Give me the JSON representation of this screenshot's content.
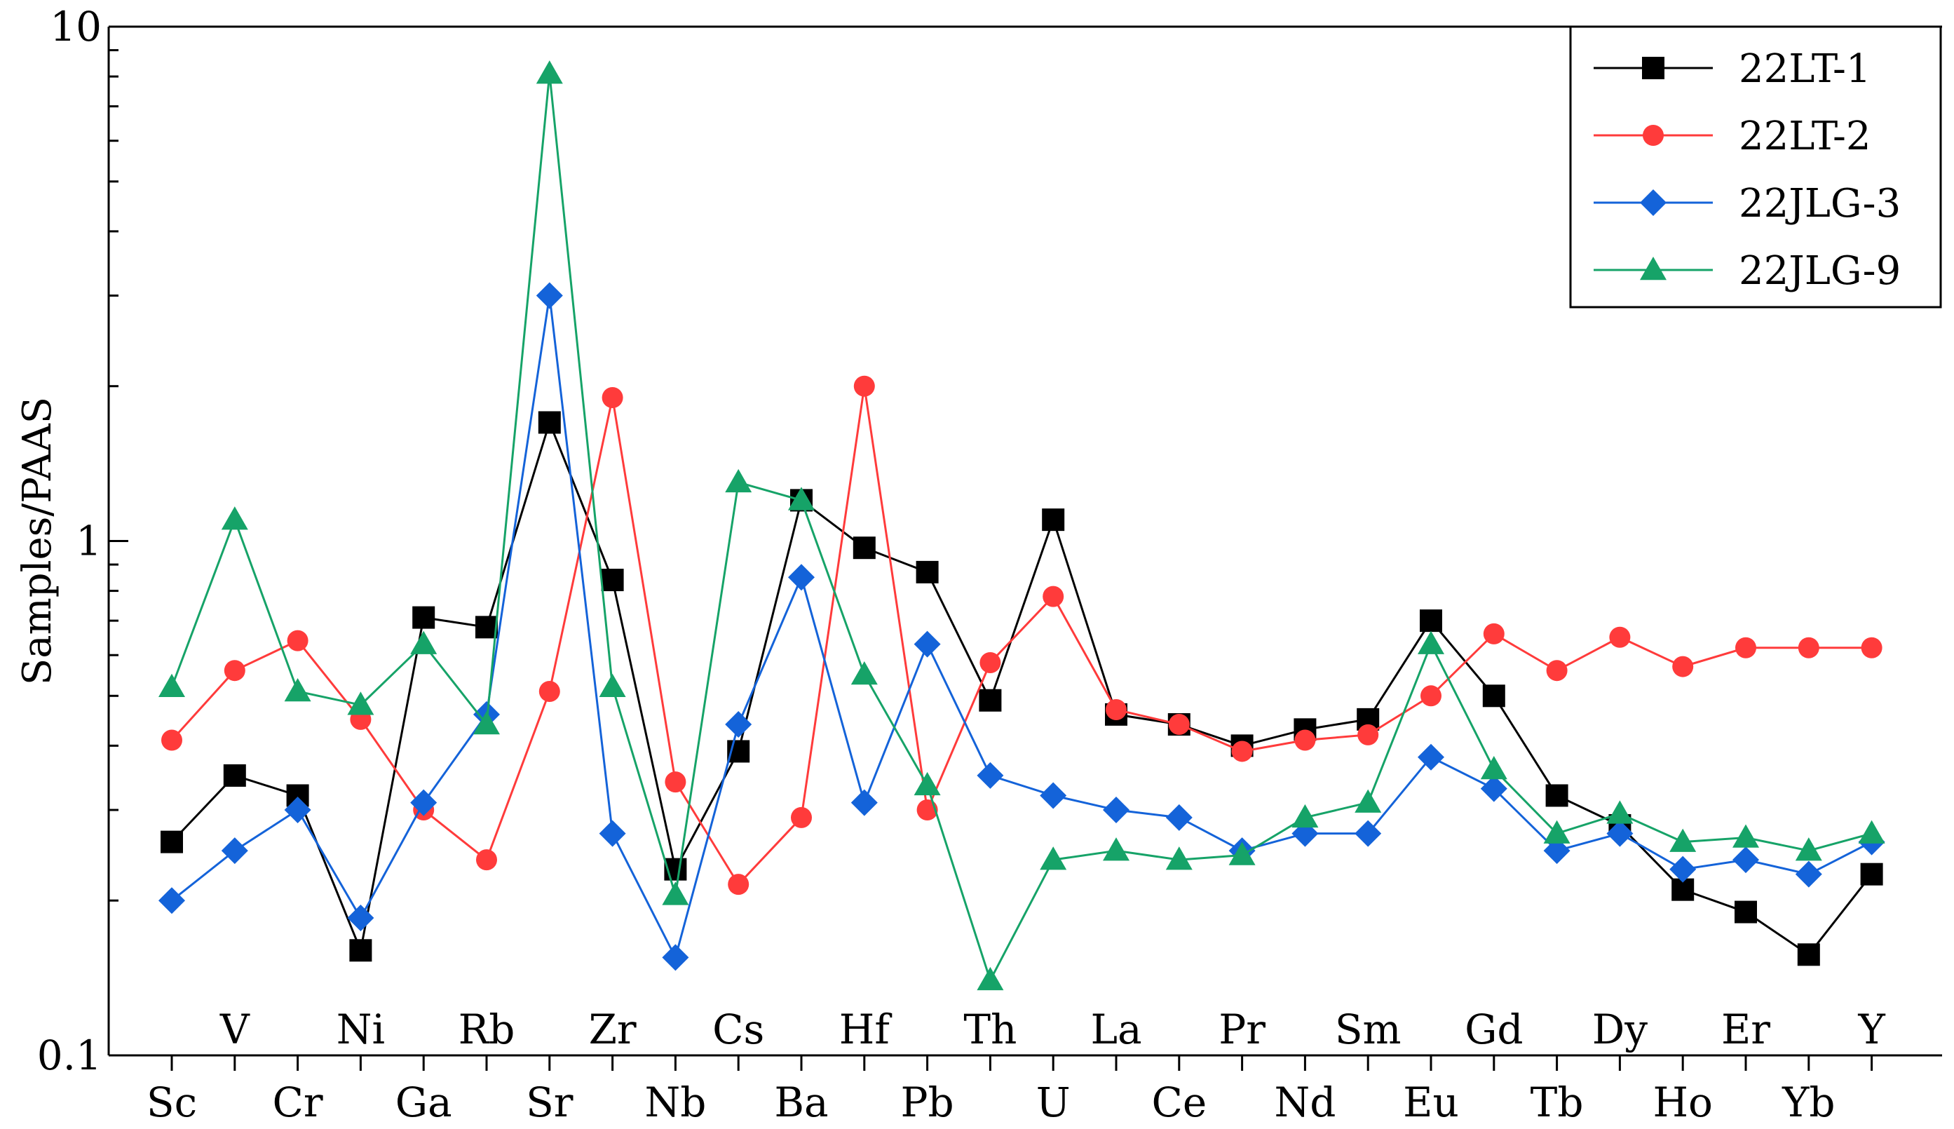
{
  "chart_data": {
    "type": "line",
    "title": "",
    "xlabel": "",
    "ylabel": "Samples/PAAS",
    "yscale": "log",
    "ylim": [
      0.1,
      10
    ],
    "yticks": [
      "0.1",
      "1",
      "10"
    ],
    "grid": false,
    "legend_position": "top-right",
    "categories": [
      "Sc",
      "V",
      "Cr",
      "Ni",
      "Ga",
      "Rb",
      "Sr",
      "Zr",
      "Nb",
      "Cs",
      "Ba",
      "Hf",
      "Pb",
      "Th",
      "U",
      "La",
      "Ce",
      "Pr",
      "Nd",
      "Sm",
      "Eu",
      "Gd",
      "Tb",
      "Dy",
      "Ho",
      "Er",
      "Yb",
      "Y"
    ],
    "category_label_rows": [
      "lower",
      "upper",
      "lower",
      "upper",
      "lower",
      "upper",
      "lower",
      "upper",
      "lower",
      "upper",
      "lower",
      "upper",
      "lower",
      "upper",
      "lower",
      "upper",
      "lower",
      "upper",
      "lower",
      "upper",
      "lower",
      "upper",
      "lower",
      "upper",
      "lower",
      "upper",
      "lower",
      "upper"
    ],
    "series": [
      {
        "name": "22LT-1",
        "color": "#000000",
        "marker": "square",
        "values": [
          0.26,
          0.35,
          0.32,
          0.16,
          0.71,
          0.68,
          1.7,
          0.84,
          0.23,
          0.39,
          1.2,
          0.97,
          0.87,
          0.49,
          1.1,
          0.46,
          0.44,
          0.4,
          0.43,
          0.45,
          0.7,
          0.5,
          0.32,
          0.28,
          0.21,
          0.19,
          0.157,
          0.225
        ]
      },
      {
        "name": "22LT-2",
        "color": "#ff3b3b",
        "marker": "circle",
        "values": [
          0.41,
          0.56,
          0.64,
          0.45,
          0.3,
          0.24,
          0.51,
          1.9,
          0.34,
          0.215,
          0.29,
          2.0,
          0.3,
          0.58,
          0.78,
          0.47,
          0.44,
          0.39,
          0.41,
          0.42,
          0.5,
          0.66,
          0.56,
          0.65,
          0.57,
          0.62,
          0.62,
          0.62
        ]
      },
      {
        "name": "22JLG-3",
        "color": "#1463d9",
        "marker": "diamond",
        "values": [
          0.2,
          0.25,
          0.3,
          0.185,
          0.31,
          0.46,
          3.0,
          0.27,
          0.155,
          0.44,
          0.85,
          0.31,
          0.63,
          0.35,
          0.32,
          0.3,
          0.29,
          0.25,
          0.27,
          0.27,
          0.38,
          0.33,
          0.25,
          0.27,
          0.23,
          0.24,
          0.225,
          0.26
        ]
      },
      {
        "name": "22JLG-9",
        "color": "#16a368",
        "marker": "triangle",
        "values": [
          0.52,
          1.1,
          0.51,
          0.48,
          0.63,
          0.44,
          8.1,
          0.52,
          0.205,
          1.3,
          1.2,
          0.55,
          0.335,
          0.14,
          0.24,
          0.25,
          0.24,
          0.245,
          0.29,
          0.31,
          0.63,
          0.36,
          0.27,
          0.295,
          0.26,
          0.265,
          0.25,
          0.27
        ]
      }
    ]
  }
}
